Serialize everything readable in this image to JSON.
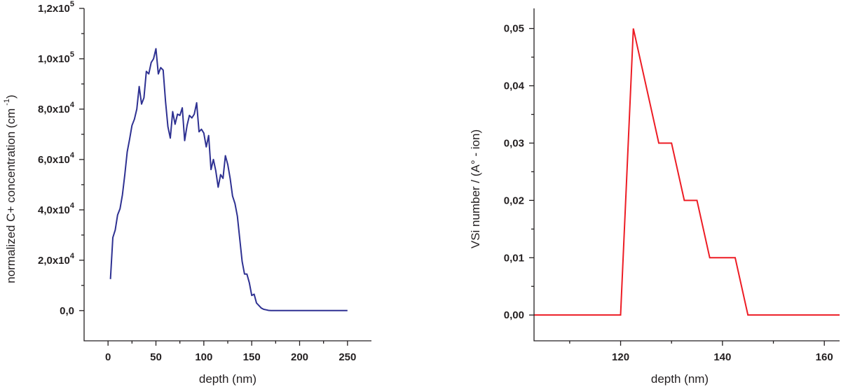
{
  "chart_data": [
    {
      "type": "line",
      "xlabel": "depth (nm)",
      "ylabel": "normalized C+ concentration (cm",
      "ylabel_superscript": "-1",
      "ylabel_suffix": ")",
      "xlim": [
        -25,
        275
      ],
      "ylim": [
        -12000,
        120000
      ],
      "x_ticks": [
        0,
        50,
        100,
        150,
        200,
        250
      ],
      "x_tick_labels": [
        "0",
        "50",
        "100",
        "150",
        "200",
        "250"
      ],
      "y_ticks": [
        0,
        20000,
        40000,
        60000,
        80000,
        100000,
        120000
      ],
      "y_tick_labels": [
        {
          "mantissa": "0,0",
          "exp": ""
        },
        {
          "mantissa": "2,0x10",
          "exp": "4"
        },
        {
          "mantissa": "4,0x10",
          "exp": "4"
        },
        {
          "mantissa": "6,0x10",
          "exp": "4"
        },
        {
          "mantissa": "8,0x10",
          "exp": "4"
        },
        {
          "mantissa": "1,0x10",
          "exp": "5"
        },
        {
          "mantissa": "1,2x10",
          "exp": "5"
        }
      ],
      "grid": false,
      "color": "#2e3192",
      "series": [
        {
          "x": [
            2.5,
            5,
            7.5,
            10,
            12.5,
            15,
            17.5,
            20,
            22.5,
            25,
            27.5,
            30,
            32.5,
            35,
            37.5,
            40,
            42.5,
            45,
            47.5,
            50,
            52.5,
            55,
            57.5,
            60,
            62.5,
            65,
            67.5,
            70,
            72.5,
            75,
            77.5,
            80,
            82.5,
            85,
            87.5,
            90,
            92.5,
            95,
            97.5,
            100,
            102.5,
            105,
            107.5,
            110,
            112.5,
            115,
            117.5,
            120,
            122.5,
            125,
            127.5,
            130,
            132.5,
            135,
            137.5,
            140,
            142.5,
            145,
            147.5,
            150,
            152.5,
            155,
            157.5,
            160,
            162.5,
            165,
            167.5,
            170,
            250
          ],
          "y": [
            12500,
            29000,
            32000,
            38000,
            40500,
            46000,
            54000,
            63000,
            68000,
            73500,
            76000,
            80000,
            89000,
            82000,
            84500,
            95000,
            94000,
            98500,
            100000,
            104000,
            94000,
            96500,
            95500,
            83000,
            73000,
            68500,
            79000,
            74000,
            78000,
            77500,
            80500,
            67500,
            73500,
            77500,
            76500,
            78000,
            82500,
            71000,
            72000,
            70500,
            65000,
            69500,
            56000,
            60000,
            55500,
            49000,
            54000,
            52500,
            61500,
            58000,
            52500,
            45500,
            42500,
            37500,
            28500,
            19500,
            14500,
            14500,
            11000,
            6000,
            6500,
            3000,
            2000,
            1000,
            500,
            300,
            100,
            0,
            0
          ]
        }
      ]
    },
    {
      "type": "line",
      "xlabel": "depth (nm)",
      "ylabel": "VSi number / (A° - ion)",
      "xlim": [
        103,
        163
      ],
      "ylim": [
        -0.0045,
        0.0535
      ],
      "x_ticks": [
        120,
        140,
        160
      ],
      "x_tick_labels": [
        "120",
        "140",
        "160"
      ],
      "y_ticks": [
        0,
        0.01,
        0.02,
        0.03,
        0.04,
        0.05
      ],
      "y_tick_labels": [
        "0,00",
        "0,01",
        "0,02",
        "0,03",
        "0,04",
        "0,05"
      ],
      "grid": false,
      "color": "#ed1c24",
      "series": [
        {
          "x": [
            103,
            120,
            122.5,
            127.5,
            130,
            132.5,
            135,
            137.5,
            142.5,
            145,
            163
          ],
          "y": [
            0,
            0,
            0.05,
            0.03,
            0.03,
            0.02,
            0.02,
            0.01,
            0.01,
            0,
            0
          ]
        }
      ]
    }
  ]
}
